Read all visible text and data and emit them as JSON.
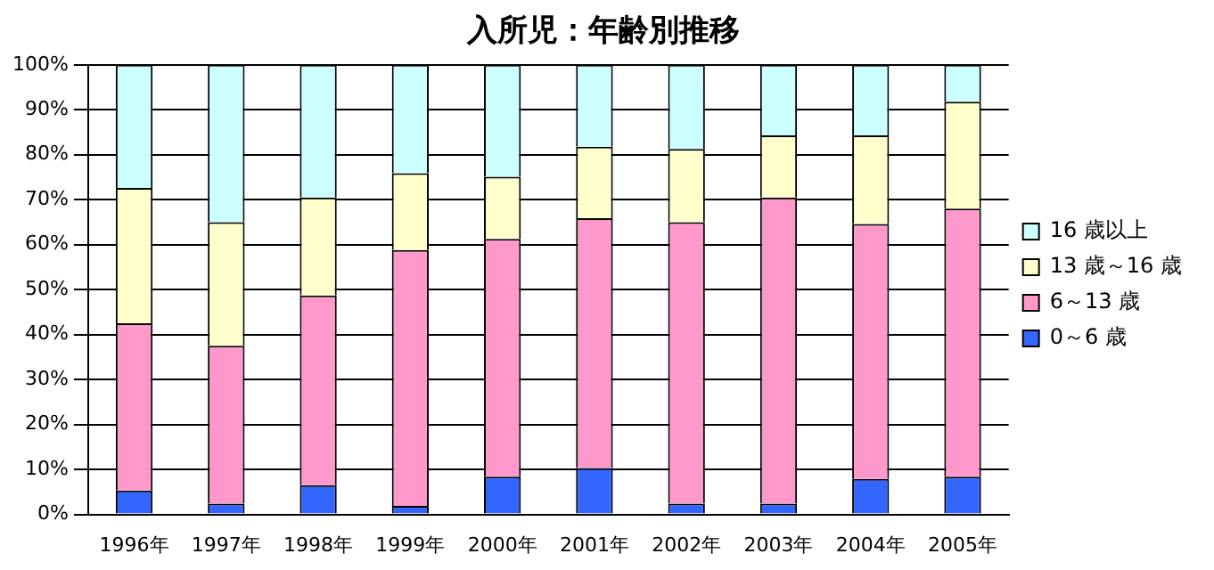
{
  "chart_data": {
    "type": "bar",
    "title": "入所児：年齢別推移",
    "stacked": true,
    "categories": [
      "1996年",
      "1997年",
      "1998年",
      "1999年",
      "2000年",
      "2001年",
      "2002年",
      "2003年",
      "2004年",
      "2005年"
    ],
    "series": [
      {
        "name": "0～6 歳",
        "color": "#3366ff",
        "values": [
          5.3,
          2.4,
          6.5,
          1.9,
          8.4,
          10.3,
          2.4,
          2.4,
          7.9,
          8.4
        ]
      },
      {
        "name": "6～13 歳",
        "color": "#ff99cc",
        "values": [
          37.2,
          35.1,
          42.2,
          56.9,
          52.9,
          55.6,
          62.6,
          68.1,
          56.7,
          59.6
        ]
      },
      {
        "name": "13 歳～16 歳",
        "color": "#ffffcc",
        "values": [
          30.1,
          27.5,
          21.8,
          17.1,
          13.8,
          15.9,
          16.3,
          13.8,
          19.7,
          23.8
        ]
      },
      {
        "name": "16 歳以上",
        "color": "#ccffff",
        "values": [
          27.4,
          35.0,
          29.5,
          24.1,
          24.9,
          18.2,
          18.7,
          15.7,
          15.7,
          8.2
        ]
      }
    ],
    "ylim": [
      0,
      100
    ],
    "yticks": [
      {
        "value": 0,
        "label": "0%"
      },
      {
        "value": 10,
        "label": "10%"
      },
      {
        "value": 20,
        "label": "20%"
      },
      {
        "value": 30,
        "label": "30%"
      },
      {
        "value": 40,
        "label": "40%"
      },
      {
        "value": 50,
        "label": "50%"
      },
      {
        "value": 60,
        "label": "60%"
      },
      {
        "value": 70,
        "label": "70%"
      },
      {
        "value": 80,
        "label": "80%"
      },
      {
        "value": 90,
        "label": "90%"
      },
      {
        "value": 100,
        "label": "100%"
      }
    ],
    "grid": "y",
    "legend": "right"
  }
}
